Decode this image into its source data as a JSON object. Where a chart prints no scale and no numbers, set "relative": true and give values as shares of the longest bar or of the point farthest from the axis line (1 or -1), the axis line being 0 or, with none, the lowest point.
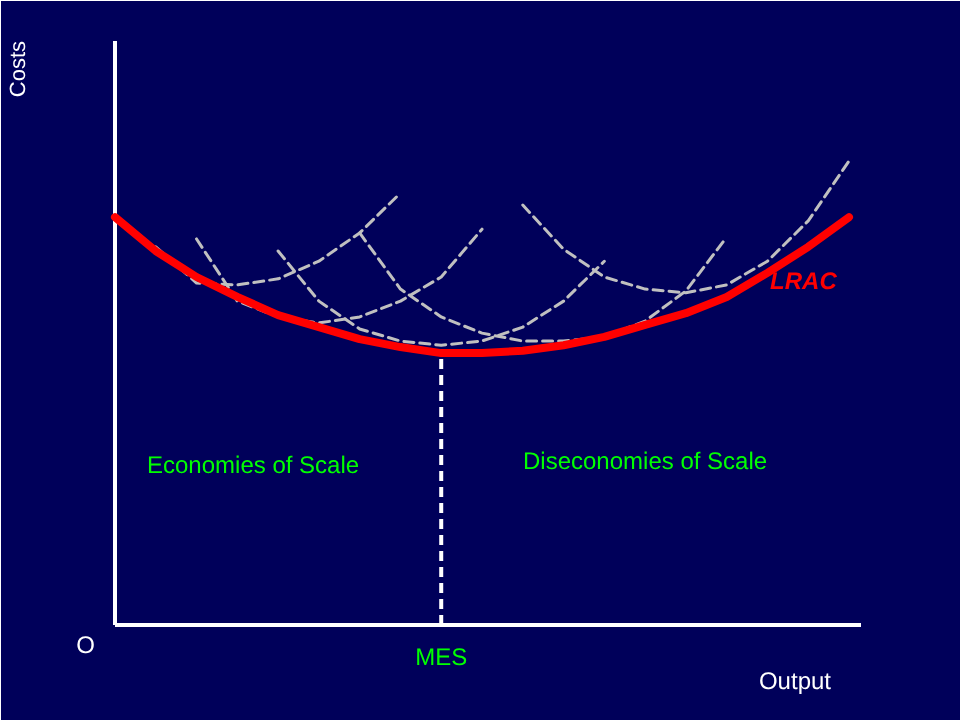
{
  "chart_data": {
    "type": "line",
    "relative": true,
    "xlabel": "Output",
    "ylabel": "Costs",
    "categories": [
      null,
      null,
      null,
      null,
      null,
      null,
      null,
      null,
      null,
      null,
      null,
      null,
      null,
      null,
      null,
      null,
      null,
      null,
      null
    ],
    "series": [
      {
        "name": "LRAC",
        "color": "#ff0000",
        "line_style": "solid",
        "values": [
          0.879,
          0.806,
          0.75,
          0.707,
          0.668,
          0.642,
          0.616,
          0.599,
          0.586,
          0.586,
          0.591,
          0.603,
          0.621,
          0.647,
          0.672,
          0.707,
          0.759,
          0.815,
          0.879
        ]
      },
      {
        "color": "#c0c0c0",
        "line_style": "dashed",
        "values": [
          null,
          0.815,
          0.737,
          0.733,
          0.746,
          0.784,
          0.845,
          0.931,
          null,
          null,
          null,
          null,
          null,
          null,
          null,
          null,
          null,
          null,
          null
        ]
      },
      {
        "color": "#c0c0c0",
        "line_style": "dashed",
        "values": [
          null,
          null,
          0.832,
          0.698,
          0.664,
          0.651,
          0.664,
          0.698,
          0.75,
          0.853,
          null,
          null,
          null,
          null,
          null,
          null,
          null,
          null,
          null
        ]
      },
      {
        "color": "#c0c0c0",
        "line_style": "dashed",
        "values": [
          null,
          null,
          null,
          null,
          0.806,
          0.698,
          0.638,
          0.612,
          0.603,
          0.612,
          0.642,
          0.698,
          0.784,
          null,
          null,
          null,
          null,
          null,
          null
        ]
      },
      {
        "color": "#c0c0c0",
        "line_style": "dashed",
        "values": [
          null,
          null,
          null,
          null,
          null,
          null,
          0.845,
          0.724,
          0.664,
          0.629,
          0.612,
          0.612,
          0.621,
          0.655,
          0.72,
          0.836,
          null,
          null,
          null
        ]
      },
      {
        "color": "#c0c0c0",
        "line_style": "dashed",
        "values": [
          null,
          null,
          null,
          null,
          null,
          null,
          null,
          null,
          null,
          null,
          0.905,
          0.81,
          0.75,
          0.724,
          0.716,
          0.733,
          0.784,
          0.871,
          1
        ]
      }
    ],
    "annotations": [
      "O",
      "Economies of Scale",
      "Diseconomies of Scale",
      "MES"
    ]
  }
}
